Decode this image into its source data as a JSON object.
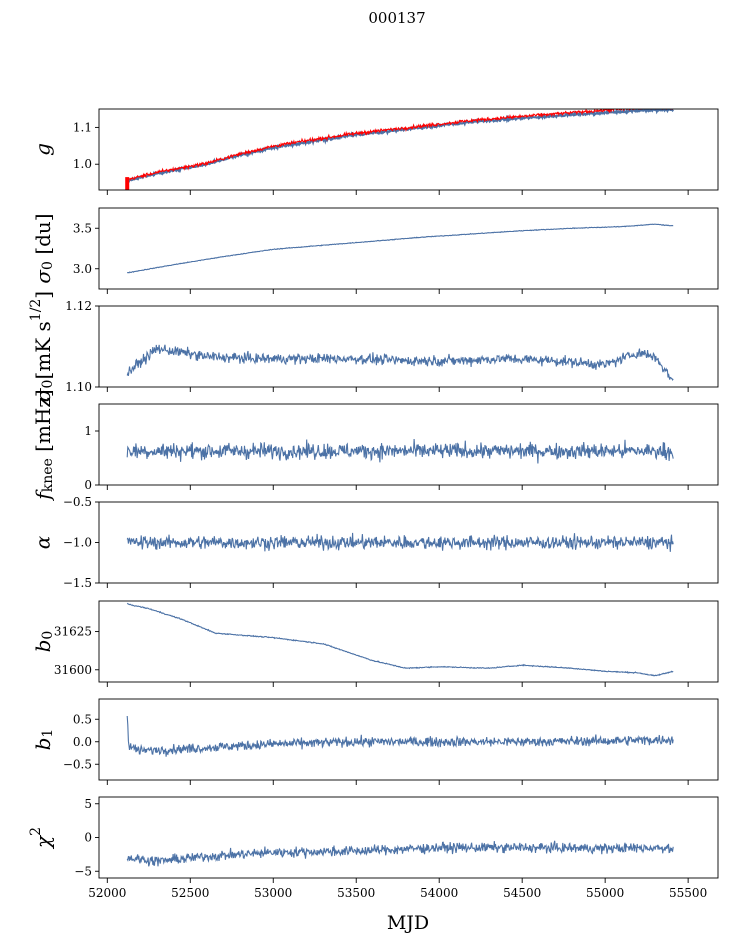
{
  "figure": {
    "title": "000137",
    "xlabel": "MJD",
    "line_color": "#4c72a6",
    "highlight_color": "#ff0000"
  },
  "chart_data": {
    "type": "line",
    "title": "000137",
    "xlabel": "MJD",
    "xlim": [
      51950,
      55680
    ],
    "x_ticks": [
      52000,
      52500,
      53000,
      53500,
      54000,
      54500,
      55000,
      55500
    ],
    "x_range": [
      52120,
      55410
    ],
    "panels": [
      {
        "id": "g",
        "ylabel": "g",
        "ylim": [
          0.93,
          1.15
        ],
        "yticks": [
          1.0,
          1.1
        ],
        "ytick_labels": [
          "1.0",
          "1.1"
        ],
        "series": [
          {
            "name": "g",
            "color": "#4c72a6",
            "x": [
              52120,
              52300,
              52600,
              52800,
              53000,
              53200,
              53500,
              53800,
              54000,
              54200,
              54500,
              54800,
              55000,
              55200,
              55410
            ],
            "y": [
              0.955,
              0.975,
              1.0,
              1.025,
              1.045,
              1.06,
              1.08,
              1.095,
              1.105,
              1.115,
              1.125,
              1.135,
              1.14,
              1.146,
              1.148
            ],
            "noise": 0.003
          },
          {
            "name": "g (red)",
            "color": "#ff0000",
            "x": [
              52120,
              52300,
              52600,
              52800,
              53000,
              53200,
              53500,
              53800,
              54000,
              54200,
              54500,
              54800,
              55000,
              55200,
              55410
            ],
            "y": [
              0.958,
              0.978,
              1.003,
              1.028,
              1.049,
              1.064,
              1.084,
              1.099,
              1.109,
              1.119,
              1.13,
              1.14,
              1.147,
              1.152,
              1.155
            ],
            "noise": 0.004
          }
        ]
      },
      {
        "id": "sigma0_du",
        "ylabel": "σ₀ [du]",
        "ylim": [
          2.75,
          3.75
        ],
        "yticks": [
          3.0,
          3.5
        ],
        "ytick_labels": [
          "3.0",
          "3.5"
        ],
        "series": [
          {
            "name": "sigma0",
            "color": "#4c72a6",
            "x": [
              52120,
              52400,
              52700,
              53000,
              53300,
              53600,
              53900,
              54200,
              54500,
              54800,
              55100,
              55300,
              55410
            ],
            "y": [
              2.95,
              3.05,
              3.15,
              3.24,
              3.29,
              3.34,
              3.39,
              3.43,
              3.47,
              3.5,
              3.52,
              3.55,
              3.53
            ],
            "noise": 0.004
          }
        ]
      },
      {
        "id": "sigma0_mK",
        "ylabel": "σ₀[mK s^1/2]",
        "ylim": [
          1.1,
          1.12
        ],
        "yticks": [
          1.1,
          1.12
        ],
        "ytick_labels": [
          "1.10",
          "1.12"
        ],
        "series": [
          {
            "name": "sigma0 mK",
            "color": "#4c72a6",
            "x": [
              52120,
              52300,
              52600,
              52900,
              53200,
              53500,
              53800,
              54100,
              54400,
              54700,
              55000,
              55200,
              55300,
              55410
            ],
            "y": [
              1.1035,
              1.1095,
              1.1075,
              1.107,
              1.107,
              1.107,
              1.1065,
              1.1065,
              1.107,
              1.1065,
              1.1055,
              1.1085,
              1.1075,
              1.1015
            ],
            "noise": 0.0012
          }
        ]
      },
      {
        "id": "fknee",
        "ylabel": "f_knee [mHz]",
        "ylim": [
          0,
          1.5
        ],
        "yticks": [
          0,
          1
        ],
        "ytick_labels": [
          "0",
          "1"
        ],
        "series": [
          {
            "name": "fknee",
            "color": "#4c72a6",
            "x": [
              52120,
              55410
            ],
            "y": [
              0.63,
              0.63
            ],
            "noise": 0.14
          }
        ]
      },
      {
        "id": "alpha",
        "ylabel": "α",
        "ylim": [
          -1.5,
          -0.5
        ],
        "yticks": [
          -1.5,
          -1.0,
          -0.5
        ],
        "ytick_labels": [
          "−1.5",
          "−1.0",
          "−0.5"
        ],
        "series": [
          {
            "name": "alpha",
            "color": "#4c72a6",
            "x": [
              52120,
              55410
            ],
            "y": [
              -1.0,
              -1.0
            ],
            "noise": 0.08
          }
        ]
      },
      {
        "id": "b0",
        "ylabel": "b₀",
        "ylim": [
          31592,
          31645
        ],
        "yticks": [
          31600,
          31625
        ],
        "ytick_labels": [
          "31600",
          "31625"
        ],
        "series": [
          {
            "name": "b0",
            "color": "#4c72a6",
            "x": [
              52120,
              52250,
              52450,
              52650,
              53000,
              53300,
              53600,
              53800,
              54000,
              54300,
              54500,
              54800,
              55000,
              55200,
              55300,
              55410
            ],
            "y": [
              31643,
              31640,
              31633,
              31624,
              31621,
              31617,
              31606,
              31601,
              31602,
              31601,
              31603,
              31601,
              31599,
              31598,
              31596,
              31599
            ],
            "noise": 0.3
          }
        ]
      },
      {
        "id": "b1",
        "ylabel": "b₁",
        "ylim": [
          -0.85,
          0.95
        ],
        "yticks": [
          -0.5,
          0.0,
          0.5
        ],
        "ytick_labels": [
          "−0.5",
          "0.0",
          "0.5"
        ],
        "series": [
          {
            "name": "b1",
            "color": "#4c72a6",
            "x": [
              52120,
              52130,
              52200,
              52500,
              53000,
              53500,
              54000,
              54500,
              55000,
              55410
            ],
            "y": [
              0.6,
              -0.1,
              -0.2,
              -0.15,
              -0.05,
              0.0,
              0.0,
              0.0,
              0.02,
              0.05
            ],
            "noise": 0.1
          }
        ]
      },
      {
        "id": "chi2",
        "ylabel": "χ²",
        "ylim": [
          -6,
          6
        ],
        "yticks": [
          -5,
          0,
          5
        ],
        "ytick_labels": [
          "−5",
          "0",
          "5"
        ],
        "series": [
          {
            "name": "chi2",
            "color": "#4c72a6",
            "x": [
              52120,
              52300,
              52600,
              53000,
              53500,
              54000,
              54500,
              55000,
              55410
            ],
            "y": [
              -3.0,
              -3.5,
              -2.8,
              -2.2,
              -2.0,
              -1.5,
              -1.5,
              -1.6,
              -1.5
            ],
            "noise": 0.7
          }
        ]
      }
    ]
  }
}
